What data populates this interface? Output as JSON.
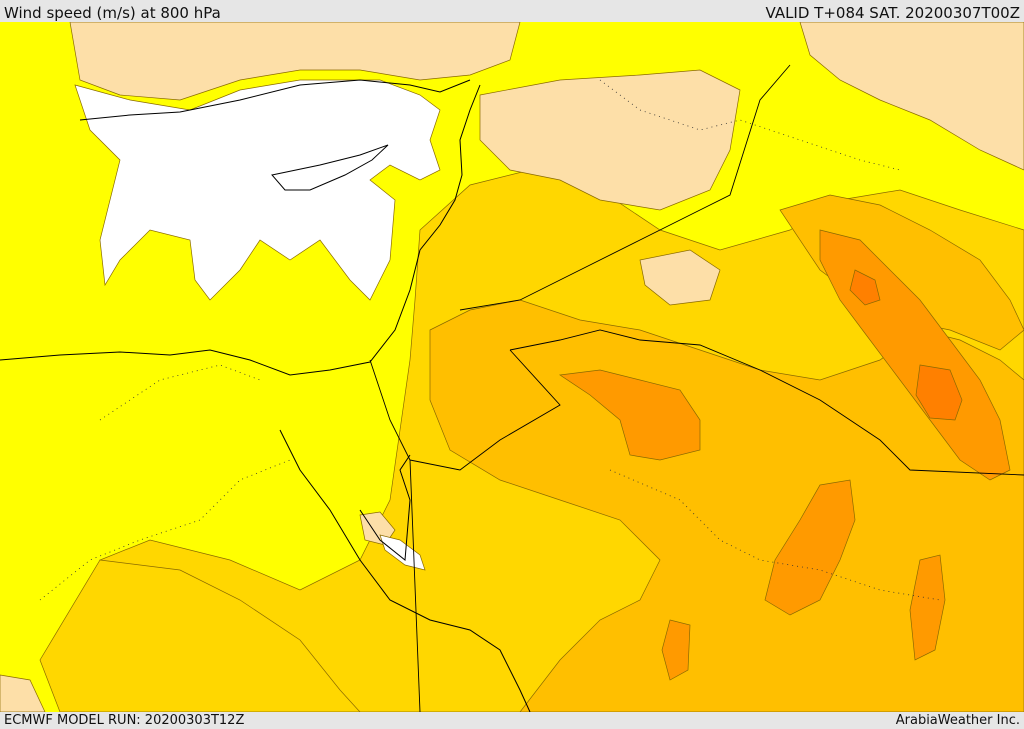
{
  "header": {
    "title": "Wind speed (m/s) at 800 hPa",
    "valid": "VALID T+084 SAT. 20200307T00Z"
  },
  "footer": {
    "model_run": "ECMWF MODEL RUN: 20200303T12Z",
    "credit": "ArabiaWeather Inc."
  },
  "map": {
    "variable": "wind-speed",
    "level": "800 hPa",
    "palette": [
      "#ffffff",
      "#fddfa8",
      "#ffff00",
      "#ffd700",
      "#ffbf00",
      "#ff9a00",
      "#ff8000"
    ]
  }
}
